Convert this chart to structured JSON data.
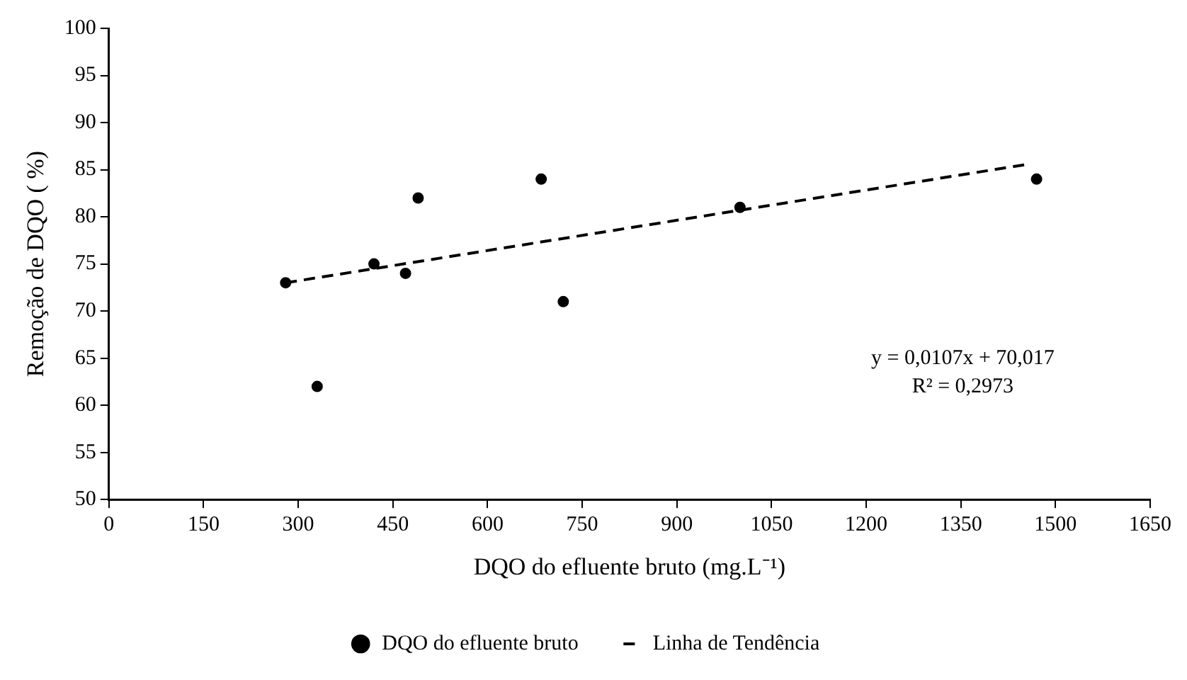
{
  "chart_data": {
    "type": "scatter",
    "xlabel": "DQO do efluente bruto (mg.L⁻¹)",
    "ylabel": "Remoção de DQO ( %)",
    "xlim": [
      0,
      1650
    ],
    "xticks": [
      0,
      150,
      300,
      450,
      600,
      750,
      900,
      1050,
      1200,
      1350,
      1500,
      1650
    ],
    "ylim": [
      50,
      100
    ],
    "yticks": [
      50,
      55,
      60,
      65,
      70,
      75,
      80,
      85,
      90,
      95,
      100
    ],
    "grid": false,
    "legend": "bottom",
    "series": [
      {
        "name": "DQO do efluente bruto",
        "type": "scatter",
        "color": "#000000",
        "marker": "circle",
        "x": [
          280,
          330,
          420,
          470,
          490,
          685,
          720,
          1000,
          1470
        ],
        "values": [
          73,
          62,
          75,
          74,
          82,
          84,
          71,
          81,
          84
        ]
      },
      {
        "name": "Linha de Tendência",
        "type": "line",
        "color": "#000000",
        "marker": "none",
        "line_style": "dashed",
        "x": [
          280,
          1458
        ],
        "values": [
          73.0,
          85.6
        ]
      }
    ],
    "annotations": [
      "y = 0,0107x + 70,017",
      "R² = 0,2973"
    ]
  }
}
